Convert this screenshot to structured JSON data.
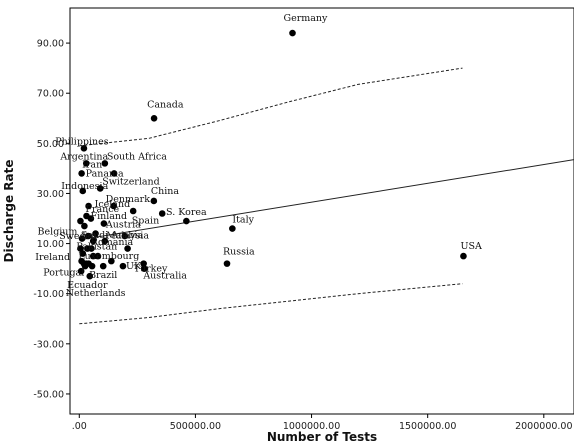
{
  "chart_data": {
    "type": "scatter",
    "xlabel": "Number of Tests",
    "ylabel": "Discharge Rate",
    "xlim": [
      -40000,
      2130000
    ],
    "ylim": [
      -58,
      104
    ],
    "x_ticks": [
      0,
      500000,
      1000000,
      1500000,
      2000000
    ],
    "x_tick_labels": [
      ".00",
      "500000.00",
      "1000000.00",
      "1500000.00",
      "2000000.00"
    ],
    "y_ticks": [
      -50,
      -30,
      -10,
      10,
      30,
      50,
      70,
      90
    ],
    "y_tick_labels": [
      "-50.00",
      "-30.00",
      "-10.00",
      "10.00",
      "30.00",
      "50.00",
      "70.00",
      "90.00"
    ],
    "grid": false,
    "fit_line": [
      [
        0,
        11.5
      ],
      [
        2130000,
        43.5
      ]
    ],
    "confidence_upper": [
      [
        0,
        49
      ],
      [
        300000,
        52
      ],
      [
        600000,
        59
      ],
      [
        900000,
        66.5
      ],
      [
        1200000,
        73.5
      ],
      [
        1650000,
        80
      ]
    ],
    "confidence_lower": [
      [
        0,
        -22
      ],
      [
        300000,
        -19.5
      ],
      [
        600000,
        -16
      ],
      [
        900000,
        -13
      ],
      [
        1200000,
        -10
      ],
      [
        1650000,
        -6
      ]
    ],
    "points": [
      {
        "label": "Germany",
        "x": 918000,
        "y": 94
      },
      {
        "label": "Canada",
        "x": 322000,
        "y": 60
      },
      {
        "label": "Philippines",
        "x": 20000,
        "y": 48
      },
      {
        "label": "Argentina",
        "x": 30000,
        "y": 42
      },
      {
        "label": "South Africa",
        "x": 110000,
        "y": 42
      },
      {
        "label": "Iran",
        "x": 150000,
        "y": 38
      },
      {
        "label": "Panama",
        "x": 10000,
        "y": 38
      },
      {
        "label": "Switzerland",
        "x": 90000,
        "y": 32
      },
      {
        "label": "Indonesia",
        "x": 15000,
        "y": 31
      },
      {
        "label": "China",
        "x": 321000,
        "y": 27
      },
      {
        "label": "Denmark",
        "x": 148000,
        "y": 25
      },
      {
        "label": "Iceland",
        "x": 40000,
        "y": 25
      },
      {
        "label": "France",
        "x": 232000,
        "y": 23
      },
      {
        "label": "Finland",
        "x": 31000,
        "y": 21
      },
      {
        "label": "Spain",
        "x": 357000,
        "y": 22
      },
      {
        "label": "S. Korea",
        "x": 461000,
        "y": 19
      },
      {
        "label": "Austria",
        "x": 106000,
        "y": 18
      },
      {
        "label": "Italy",
        "x": 659000,
        "y": 16
      },
      {
        "label": "Saudi Arabia",
        "x": 196000,
        "y": 13
      },
      {
        "label": "Belgium",
        "x": 70000,
        "y": 14
      },
      {
        "label": "Sweden",
        "x": 60000,
        "y": 11
      },
      {
        "label": "Romania",
        "x": 110000,
        "y": 11
      },
      {
        "label": "Pakistan",
        "x": 52000,
        "y": 8
      },
      {
        "label": "Malaysia",
        "x": 208000,
        "y": 8
      },
      {
        "label": "Ireland",
        "x": 60000,
        "y": 5
      },
      {
        "label": "Luxembourg",
        "x": 138000,
        "y": 3
      },
      {
        "label": "Turkey",
        "x": 277000,
        "y": 2
      },
      {
        "label": "Russia",
        "x": 636000,
        "y": 2
      },
      {
        "label": "USA",
        "x": 1654000,
        "y": 5
      },
      {
        "label": "UK",
        "x": 188000,
        "y": 1
      },
      {
        "label": "Australia",
        "x": 280000,
        "y": 0
      },
      {
        "label": "Portugal",
        "x": 30000,
        "y": 2
      },
      {
        "label": "Brazil",
        "x": 103000,
        "y": 1
      },
      {
        "label": "Ecuador",
        "x": 8000,
        "y": -1
      },
      {
        "label": "Netherlands",
        "x": 45000,
        "y": -3
      },
      {
        "label": "",
        "x": 5000,
        "y": 8
      },
      {
        "label": "",
        "x": 10000,
        "y": 3
      },
      {
        "label": "",
        "x": 20000,
        "y": 2
      },
      {
        "label": "",
        "x": 25000,
        "y": 1
      },
      {
        "label": "",
        "x": 40000,
        "y": 2
      },
      {
        "label": "",
        "x": 55000,
        "y": 1
      },
      {
        "label": "",
        "x": 15000,
        "y": 6
      },
      {
        "label": "",
        "x": 35000,
        "y": 8
      },
      {
        "label": "",
        "x": 80000,
        "y": 5
      },
      {
        "label": "",
        "x": 5000,
        "y": 19
      },
      {
        "label": "",
        "x": 22000,
        "y": 17
      },
      {
        "label": "",
        "x": 50000,
        "y": 20
      },
      {
        "label": "",
        "x": 38000,
        "y": 13
      },
      {
        "label": "",
        "x": 12000,
        "y": 12
      }
    ]
  }
}
